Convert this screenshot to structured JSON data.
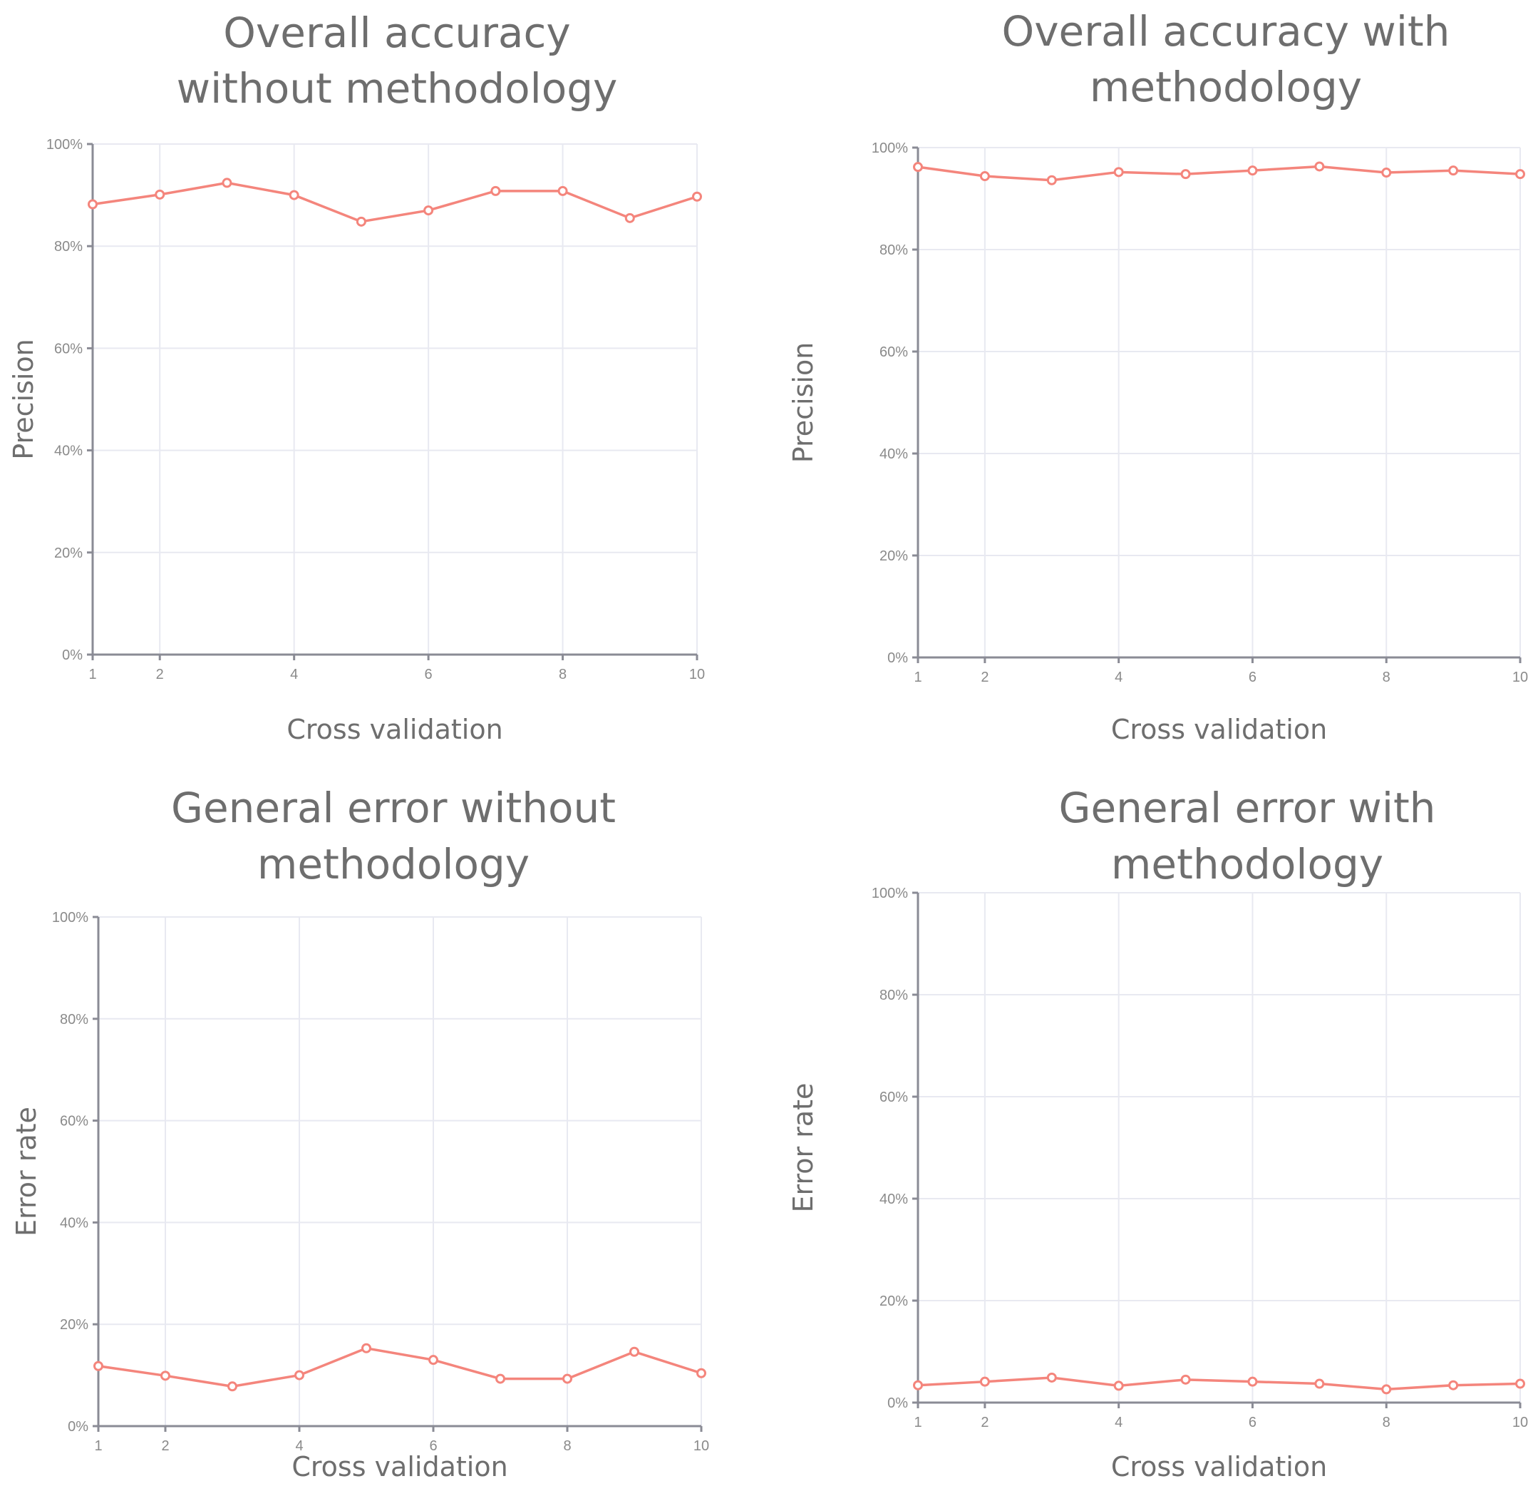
{
  "colors": {
    "series": "#f4857c",
    "grid": "#e8e9f1",
    "axis": "#8a8b95",
    "text": "#6e6e6e"
  },
  "chart_data": [
    {
      "type": "line",
      "title_lines": [
        "Overall accuracy",
        "without methodology"
      ],
      "xlabel": "Cross validation",
      "ylabel": "Precision",
      "x": [
        1,
        2,
        3,
        4,
        5,
        6,
        7,
        8,
        9,
        10
      ],
      "x_ticks": [
        1,
        2,
        4,
        6,
        8,
        10
      ],
      "x_tick_labels": [
        "1",
        "2",
        "4",
        "6",
        "8",
        "10"
      ],
      "xlim": [
        1,
        10
      ],
      "y_ticks": [
        0,
        20,
        40,
        60,
        80,
        100
      ],
      "y_tick_labels": [
        "0%",
        "20%",
        "40%",
        "60%",
        "80%",
        "100%"
      ],
      "ylim": [
        0,
        100
      ],
      "grid": true,
      "series": [
        {
          "name": "Precision",
          "values": [
            88.2,
            90.1,
            92.4,
            90.0,
            84.8,
            87.0,
            90.8,
            90.8,
            85.5,
            89.7
          ]
        }
      ]
    },
    {
      "type": "line",
      "title_lines": [
        "Overall accuracy with",
        "methodology"
      ],
      "xlabel": "Cross validation",
      "ylabel": "Precision",
      "x": [
        1,
        2,
        3,
        4,
        5,
        6,
        7,
        8,
        9,
        10
      ],
      "x_ticks": [
        1,
        2,
        4,
        6,
        8,
        10
      ],
      "x_tick_labels": [
        "1",
        "2",
        "4",
        "6",
        "8",
        "10"
      ],
      "xlim": [
        1,
        10
      ],
      "y_ticks": [
        0,
        20,
        40,
        60,
        80,
        100
      ],
      "y_tick_labels": [
        "0%",
        "20%",
        "40%",
        "60%",
        "80%",
        "100%"
      ],
      "ylim": [
        0,
        100
      ],
      "grid": true,
      "series": [
        {
          "name": "Precision",
          "values": [
            96.2,
            94.4,
            93.6,
            95.2,
            94.8,
            95.5,
            96.3,
            95.1,
            95.5,
            94.8
          ]
        }
      ]
    },
    {
      "type": "line",
      "title_lines": [
        "General error without",
        "methodology"
      ],
      "xlabel": "Cross validation",
      "ylabel": "Error rate",
      "x": [
        1,
        2,
        3,
        4,
        5,
        6,
        7,
        8,
        9,
        10
      ],
      "x_ticks": [
        1,
        2,
        4,
        6,
        8,
        10
      ],
      "x_tick_labels": [
        "1",
        "2",
        "4",
        "6",
        "8",
        "10"
      ],
      "xlim": [
        1,
        10
      ],
      "y_ticks": [
        0,
        20,
        40,
        60,
        80,
        100
      ],
      "y_tick_labels": [
        "0%",
        "20%",
        "40%",
        "60%",
        "80%",
        "100%"
      ],
      "ylim": [
        0,
        100
      ],
      "grid": true,
      "series": [
        {
          "name": "Error rate",
          "values": [
            11.8,
            9.9,
            7.8,
            10.0,
            15.3,
            13.0,
            9.3,
            9.3,
            14.6,
            10.4
          ]
        }
      ]
    },
    {
      "type": "line",
      "title_lines": [
        "General error with",
        "methodology"
      ],
      "xlabel": "Cross validation",
      "ylabel": "Error rate",
      "x": [
        1,
        2,
        3,
        4,
        5,
        6,
        7,
        8,
        9,
        10
      ],
      "x_ticks": [
        1,
        2,
        4,
        6,
        8,
        10
      ],
      "x_tick_labels": [
        "1",
        "2",
        "4",
        "6",
        "8",
        "10"
      ],
      "xlim": [
        1,
        10
      ],
      "y_ticks": [
        0,
        20,
        40,
        60,
        80,
        100
      ],
      "y_tick_labels": [
        "0%",
        "20%",
        "40%",
        "60%",
        "80%",
        "100%"
      ],
      "ylim": [
        0,
        100
      ],
      "grid": true,
      "series": [
        {
          "name": "Error rate",
          "values": [
            3.4,
            4.1,
            4.9,
            3.3,
            4.5,
            4.1,
            3.7,
            2.6,
            3.4,
            3.7
          ]
        }
      ]
    }
  ]
}
